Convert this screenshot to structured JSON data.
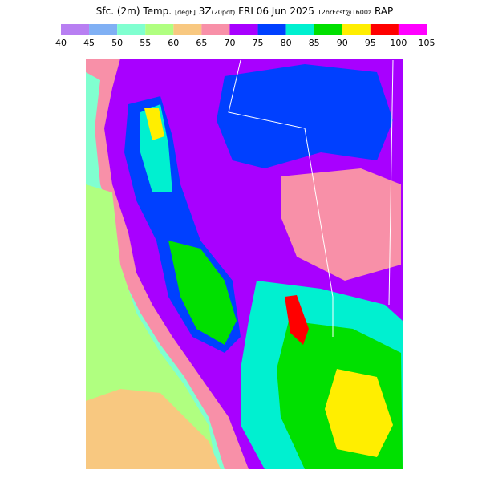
{
  "header": {
    "title_parts": [
      "Sfc. (2m) Temp.",
      "[degF]",
      "3Z",
      "(20pdt)",
      "FRI 06 Jun 2025",
      "12hrFcst@1600z",
      "RAP"
    ]
  },
  "legend": {
    "labels": [
      40,
      45,
      50,
      55,
      60,
      65,
      70,
      75,
      80,
      85,
      90,
      95,
      100,
      105
    ],
    "colors": [
      "#b87ff2",
      "#80b0f4",
      "#80ffd0",
      "#b0ff80",
      "#f8c880",
      "#f890a8",
      "#a800ff",
      "#0040ff",
      "#00f0d0",
      "#00e000",
      "#ffee00",
      "#ff0000",
      "#ff00ff"
    ]
  }
}
